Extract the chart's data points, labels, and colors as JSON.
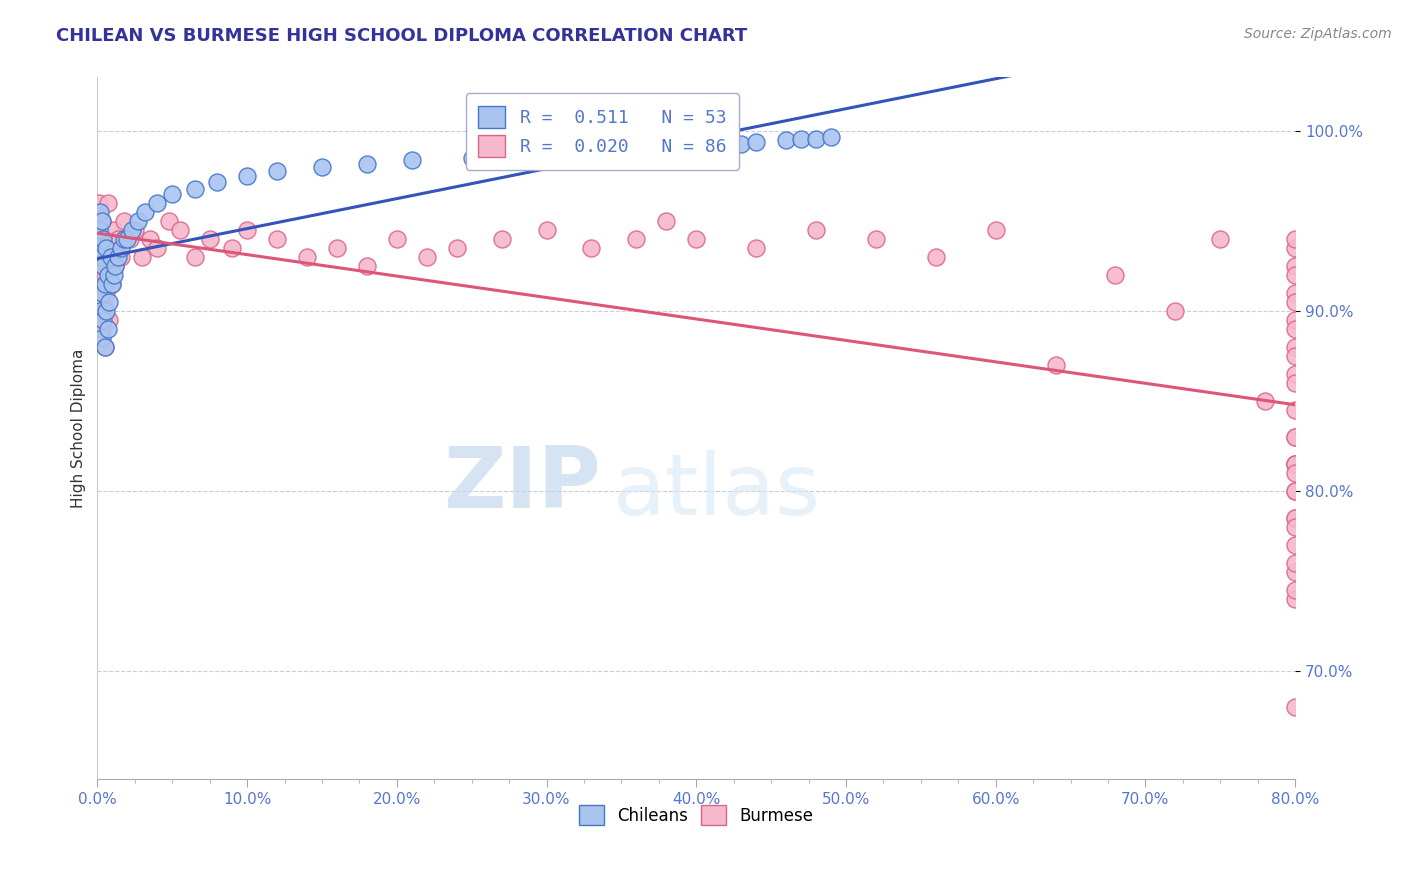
{
  "title": "CHILEAN VS BURMESE HIGH SCHOOL DIPLOMA CORRELATION CHART",
  "source_text": "Source: ZipAtlas.com",
  "ylabel": "High School Diploma",
  "xlim": [
    0.0,
    0.8
  ],
  "ylim": [
    0.64,
    1.03
  ],
  "xtick_labels": [
    "0.0%",
    "",
    "",
    "",
    "10.0%",
    "",
    "",
    "",
    "20.0%",
    "",
    "",
    "",
    "30.0%",
    "",
    "",
    "",
    "40.0%",
    "",
    "",
    "",
    "50.0%",
    "",
    "",
    "",
    "60.0%",
    "",
    "",
    "",
    "70.0%",
    "",
    "",
    "",
    "80.0%"
  ],
  "xtick_values": [
    0.0,
    0.025,
    0.05,
    0.075,
    0.1,
    0.125,
    0.15,
    0.175,
    0.2,
    0.225,
    0.25,
    0.275,
    0.3,
    0.325,
    0.35,
    0.375,
    0.4,
    0.425,
    0.45,
    0.475,
    0.5,
    0.525,
    0.55,
    0.575,
    0.6,
    0.625,
    0.65,
    0.675,
    0.7,
    0.725,
    0.75,
    0.775,
    0.8
  ],
  "ytick_labels": [
    "70.0%",
    "80.0%",
    "90.0%",
    "100.0%"
  ],
  "ytick_values": [
    0.7,
    0.8,
    0.9,
    1.0
  ],
  "chilean_color": "#aac4f0",
  "chilean_edge": "#4477cc",
  "burmese_color": "#f5b8cc",
  "burmese_edge": "#dd6688",
  "chilean_line_color": "#3355bb",
  "burmese_line_color": "#dd5577",
  "chilean_R": 0.511,
  "chilean_N": 53,
  "burmese_R": 0.02,
  "burmese_N": 86,
  "title_color": "#333399",
  "tick_color": "#5577cc",
  "grid_color": "#ccccdd",
  "watermark_zip": "ZIP",
  "watermark_atlas": "atlas",
  "chilean_x": [
    0.001,
    0.001,
    0.002,
    0.002,
    0.002,
    0.003,
    0.003,
    0.003,
    0.003,
    0.004,
    0.004,
    0.004,
    0.005,
    0.005,
    0.006,
    0.006,
    0.007,
    0.007,
    0.008,
    0.009,
    0.01,
    0.011,
    0.012,
    0.014,
    0.016,
    0.018,
    0.02,
    0.023,
    0.027,
    0.032,
    0.04,
    0.05,
    0.065,
    0.08,
    0.1,
    0.12,
    0.15,
    0.18,
    0.21,
    0.25,
    0.28,
    0.31,
    0.34,
    0.36,
    0.38,
    0.4,
    0.41,
    0.43,
    0.44,
    0.46,
    0.47,
    0.48,
    0.49
  ],
  "chilean_y": [
    0.93,
    0.945,
    0.9,
    0.935,
    0.955,
    0.885,
    0.91,
    0.93,
    0.95,
    0.895,
    0.925,
    0.94,
    0.88,
    0.915,
    0.9,
    0.935,
    0.89,
    0.92,
    0.905,
    0.93,
    0.915,
    0.92,
    0.925,
    0.93,
    0.935,
    0.94,
    0.94,
    0.945,
    0.95,
    0.955,
    0.96,
    0.965,
    0.968,
    0.972,
    0.975,
    0.978,
    0.98,
    0.982,
    0.984,
    0.985,
    0.987,
    0.988,
    0.989,
    0.99,
    0.991,
    0.992,
    0.993,
    0.993,
    0.994,
    0.995,
    0.996,
    0.996,
    0.997
  ],
  "burmese_x": [
    0.001,
    0.001,
    0.002,
    0.002,
    0.003,
    0.003,
    0.003,
    0.004,
    0.004,
    0.005,
    0.005,
    0.006,
    0.007,
    0.007,
    0.008,
    0.009,
    0.01,
    0.011,
    0.012,
    0.014,
    0.016,
    0.018,
    0.022,
    0.025,
    0.03,
    0.035,
    0.04,
    0.048,
    0.055,
    0.065,
    0.075,
    0.09,
    0.1,
    0.12,
    0.14,
    0.16,
    0.18,
    0.2,
    0.22,
    0.24,
    0.27,
    0.3,
    0.33,
    0.36,
    0.38,
    0.4,
    0.44,
    0.48,
    0.52,
    0.56,
    0.6,
    0.64,
    0.68,
    0.72,
    0.75,
    0.78,
    0.8,
    0.8,
    0.8,
    0.8,
    0.8,
    0.8,
    0.8,
    0.8,
    0.8,
    0.8,
    0.8,
    0.8,
    0.8,
    0.8,
    0.8,
    0.8,
    0.8,
    0.8,
    0.8,
    0.8,
    0.8,
    0.8,
    0.8,
    0.8,
    0.8,
    0.8,
    0.8,
    0.8,
    0.8,
    0.8
  ],
  "burmese_y": [
    0.93,
    0.96,
    0.92,
    0.945,
    0.89,
    0.925,
    0.95,
    0.905,
    0.94,
    0.88,
    0.92,
    0.91,
    0.935,
    0.96,
    0.895,
    0.93,
    0.915,
    0.945,
    0.925,
    0.94,
    0.93,
    0.95,
    0.94,
    0.945,
    0.93,
    0.94,
    0.935,
    0.95,
    0.945,
    0.93,
    0.94,
    0.935,
    0.945,
    0.94,
    0.93,
    0.935,
    0.925,
    0.94,
    0.93,
    0.935,
    0.94,
    0.945,
    0.935,
    0.94,
    0.95,
    0.94,
    0.935,
    0.945,
    0.94,
    0.93,
    0.945,
    0.87,
    0.92,
    0.9,
    0.94,
    0.85,
    0.935,
    0.925,
    0.91,
    0.895,
    0.88,
    0.865,
    0.94,
    0.92,
    0.905,
    0.89,
    0.875,
    0.86,
    0.845,
    0.83,
    0.815,
    0.8,
    0.785,
    0.77,
    0.755,
    0.74,
    0.815,
    0.8,
    0.785,
    0.78,
    0.83,
    0.815,
    0.81,
    0.76,
    0.745,
    0.68
  ]
}
